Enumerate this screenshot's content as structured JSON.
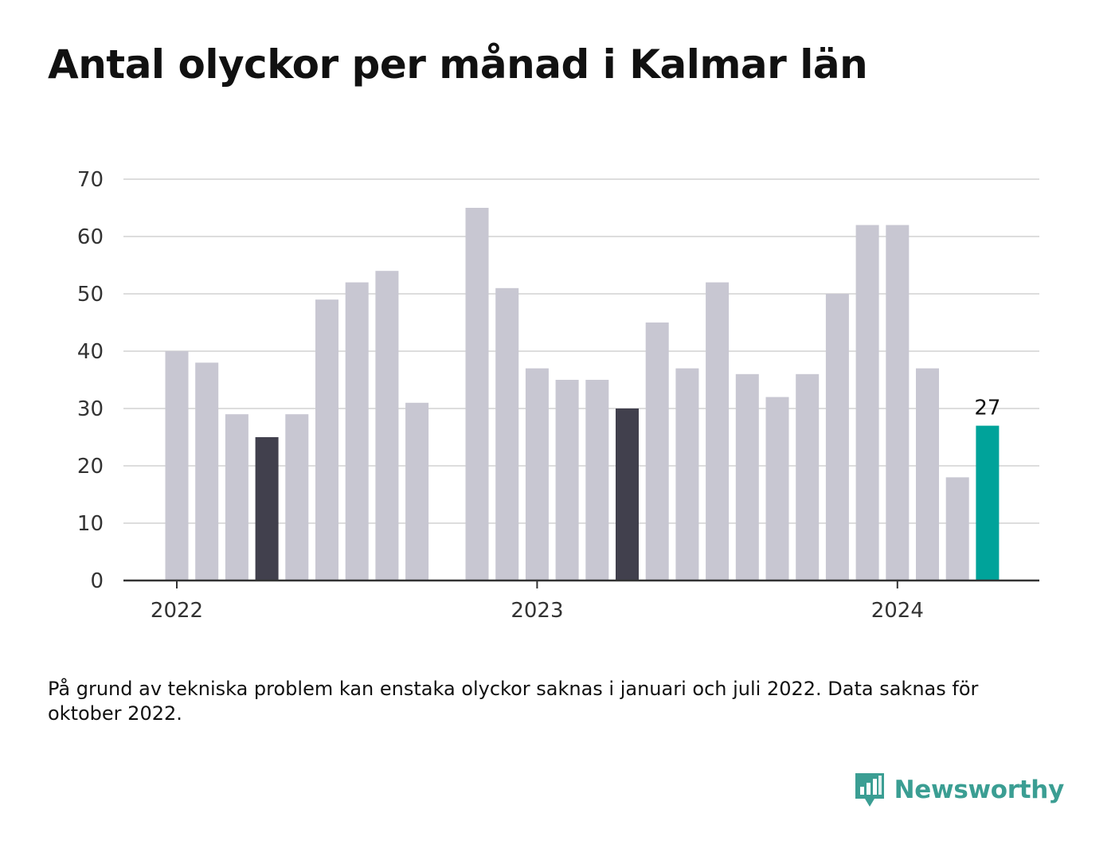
{
  "title": "Antal olyckor per månad i Kalmar län",
  "footnote": "På grund av tekniska problem kan enstaka olyckor saknas i januari och juli 2022. Data saknas för oktober 2022.",
  "brand": {
    "name": "Newsworthy",
    "icon": "newsworthy-logo-icon",
    "color": "#3b9e93"
  },
  "colors": {
    "default": "#c8c7d2",
    "highlight": "#41404d",
    "latest": "#00a39a",
    "grid": "#dddddd",
    "axis": "#333333"
  },
  "chart_data": {
    "type": "bar",
    "title": "Antal olyckor per månad i Kalmar län",
    "xlabel": "",
    "ylabel": "",
    "ylim": [
      0,
      70
    ],
    "yticks": [
      0,
      10,
      20,
      30,
      40,
      50,
      60,
      70
    ],
    "grid": true,
    "legend": "none",
    "x_ticks": [
      {
        "label": "2022",
        "date": "2022-01"
      },
      {
        "label": "2023",
        "date": "2023-01"
      },
      {
        "label": "2024",
        "date": "2024-01"
      }
    ],
    "bars": [
      {
        "date": "2022-01",
        "value": 40,
        "style": "default"
      },
      {
        "date": "2022-02",
        "value": 38,
        "style": "default"
      },
      {
        "date": "2022-03",
        "value": 29,
        "style": "default"
      },
      {
        "date": "2022-04",
        "value": 25,
        "style": "highlight"
      },
      {
        "date": "2022-05",
        "value": 29,
        "style": "default"
      },
      {
        "date": "2022-06",
        "value": 49,
        "style": "default"
      },
      {
        "date": "2022-07",
        "value": 52,
        "style": "default"
      },
      {
        "date": "2022-08",
        "value": 54,
        "style": "default"
      },
      {
        "date": "2022-09",
        "value": 31,
        "style": "default"
      },
      {
        "date": "2022-11",
        "value": 65,
        "style": "default"
      },
      {
        "date": "2022-12",
        "value": 51,
        "style": "default"
      },
      {
        "date": "2023-01",
        "value": 37,
        "style": "default"
      },
      {
        "date": "2023-02",
        "value": 35,
        "style": "default"
      },
      {
        "date": "2023-03",
        "value": 35,
        "style": "default"
      },
      {
        "date": "2023-04",
        "value": 30,
        "style": "highlight"
      },
      {
        "date": "2023-05",
        "value": 45,
        "style": "default"
      },
      {
        "date": "2023-06",
        "value": 37,
        "style": "default"
      },
      {
        "date": "2023-07",
        "value": 52,
        "style": "default"
      },
      {
        "date": "2023-08",
        "value": 36,
        "style": "default"
      },
      {
        "date": "2023-09",
        "value": 32,
        "style": "default"
      },
      {
        "date": "2023-10",
        "value": 36,
        "style": "default"
      },
      {
        "date": "2023-11",
        "value": 50,
        "style": "default"
      },
      {
        "date": "2023-12",
        "value": 62,
        "style": "default"
      },
      {
        "date": "2024-01",
        "value": 62,
        "style": "default"
      },
      {
        "date": "2024-02",
        "value": 37,
        "style": "default"
      },
      {
        "date": "2024-03",
        "value": 18,
        "style": "default"
      },
      {
        "date": "2024-04",
        "value": 27,
        "style": "latest",
        "label": "27"
      }
    ]
  }
}
